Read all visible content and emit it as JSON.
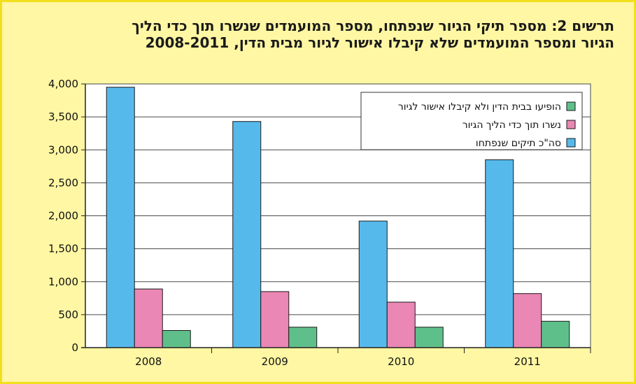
{
  "title_lines": [
    "תרשים 2: מספר תיקי הגיור שנפתחו, מספר המועמדים שנשרו תוך כדי הליך",
    "הגיור ומספר המועמדים שלא קיבלו אישור לגיור מבית הדין, 2008-2011"
  ],
  "chart_data": {
    "type": "bar",
    "categories": [
      "2008",
      "2009",
      "2010",
      "2011"
    ],
    "series": [
      {
        "name": "סה\"כ תיקים שנפתחו",
        "color": "#56b9ec",
        "values": [
          3950,
          3430,
          1920,
          2850
        ]
      },
      {
        "name": "נשרו תוך כדי הליך הגיור",
        "color": "#ea87b4",
        "values": [
          890,
          850,
          690,
          820
        ]
      },
      {
        "name": "הופיעו בבית הדין ולא קיבלו אישור לגיור",
        "color": "#5fbf8a",
        "values": [
          260,
          310,
          310,
          400
        ]
      }
    ],
    "ylim": [
      0,
      4000
    ],
    "yticks": [
      0,
      500,
      1000,
      1500,
      2000,
      2500,
      3000,
      3500,
      4000
    ],
    "ytick_labels": [
      "0",
      "500",
      "1,000",
      "1,500",
      "2,000",
      "2,500",
      "3,000",
      "3,500",
      "4,000"
    ],
    "grid": true,
    "legend_position": "top-right",
    "legend_order": [
      2,
      1,
      0
    ]
  }
}
